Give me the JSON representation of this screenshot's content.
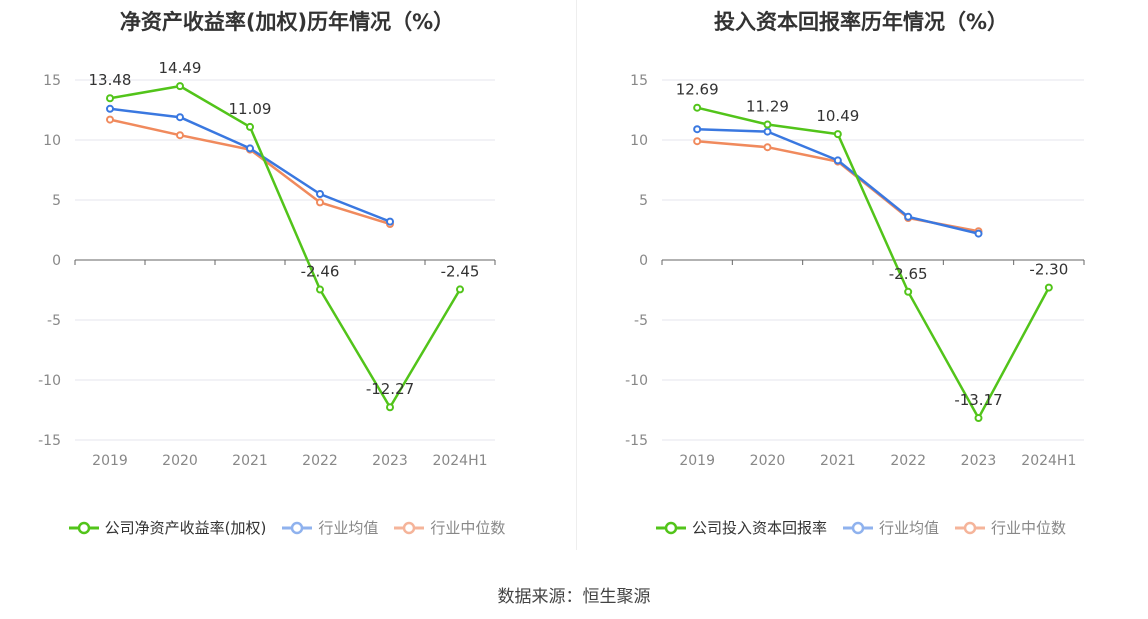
{
  "source": "数据来源：恒生聚源",
  "chart_data": [
    {
      "type": "line",
      "title": "净资产收益率(加权)历年情况（%）",
      "categories": [
        "2019",
        "2020",
        "2021",
        "2022",
        "2023",
        "2024H1"
      ],
      "ylim": [
        -15,
        15
      ],
      "yticks": [
        15,
        10,
        5,
        0,
        -5,
        -10,
        -15
      ],
      "grid": true,
      "legend_position": "bottom",
      "series": [
        {
          "name": "公司净资产收益率(加权)",
          "color": "#52c41a",
          "values": [
            13.48,
            14.49,
            11.09,
            -2.46,
            -12.27,
            -2.45
          ],
          "labels": [
            "13.48",
            "14.49",
            "11.09",
            "-2.46",
            "-12.27",
            "-2.45"
          ]
        },
        {
          "name": "行业均值",
          "color": "#3a78e0",
          "values": [
            12.6,
            11.9,
            9.3,
            5.5,
            3.2,
            null
          ]
        },
        {
          "name": "行业中位数",
          "color": "#f08a5d",
          "values": [
            11.7,
            10.4,
            9.2,
            4.8,
            3.0,
            null
          ]
        }
      ]
    },
    {
      "type": "line",
      "title": "投入资本回报率历年情况（%）",
      "categories": [
        "2019",
        "2020",
        "2021",
        "2022",
        "2023",
        "2024H1"
      ],
      "ylim": [
        -15,
        15
      ],
      "yticks": [
        15,
        10,
        5,
        0,
        -5,
        -10,
        -15
      ],
      "grid": true,
      "legend_position": "bottom",
      "series": [
        {
          "name": "公司投入资本回报率",
          "color": "#52c41a",
          "values": [
            12.69,
            11.29,
            10.49,
            -2.65,
            -13.17,
            -2.3
          ],
          "labels": [
            "12.69",
            "11.29",
            "10.49",
            "-2.65",
            "-13.17",
            "-2.30"
          ]
        },
        {
          "name": "行业均值",
          "color": "#3a78e0",
          "values": [
            10.9,
            10.7,
            8.3,
            3.6,
            2.2,
            null
          ]
        },
        {
          "name": "行业中位数",
          "color": "#f08a5d",
          "values": [
            9.9,
            9.4,
            8.2,
            3.5,
            2.4,
            null
          ]
        }
      ]
    }
  ],
  "legend_styles": {
    "active_color": "#52c41a",
    "dim_blue": "#8fb2ee",
    "dim_orange": "#f5b49a"
  }
}
